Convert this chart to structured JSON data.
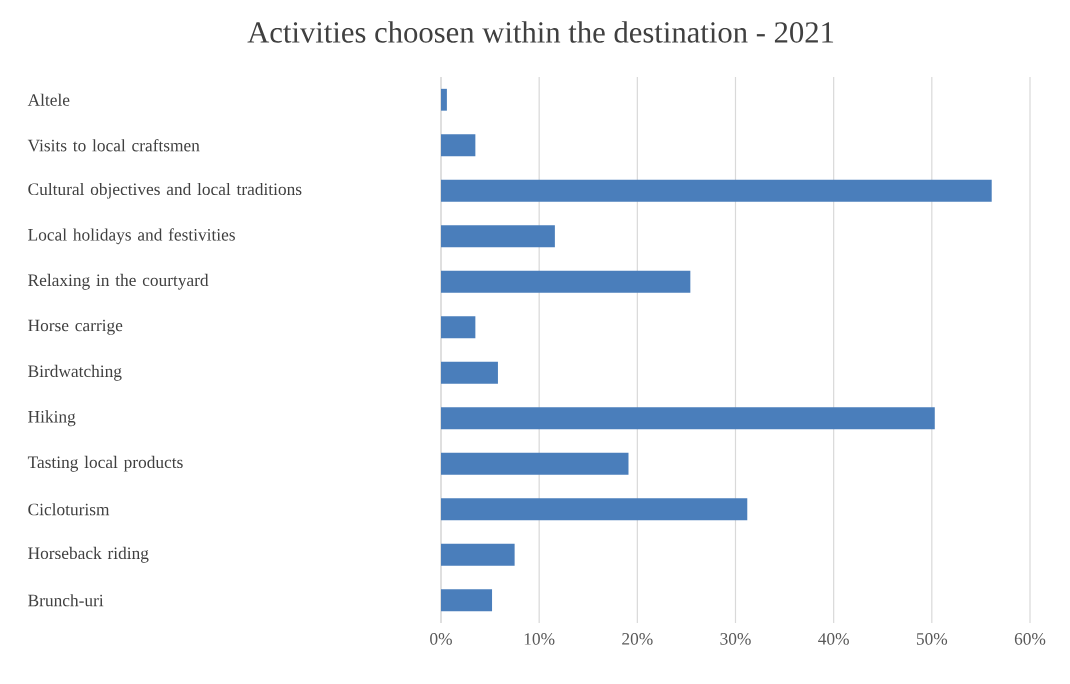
{
  "chart_data": {
    "type": "bar",
    "orientation": "horizontal",
    "title": "Activities choosen within the destination - 2021",
    "categories": [
      "Altele",
      "Visits to local craftsmen",
      "Cultural objectives and local traditions",
      "Local holidays and festivities",
      "Relaxing in the courtyard",
      "Horse carrige",
      "Birdwatching",
      "Hiking",
      "Tasting local products",
      "Cicloturism",
      "Horseback riding",
      "Brunch-uri"
    ],
    "values": [
      0.6,
      3.5,
      56.1,
      11.6,
      25.4,
      3.5,
      5.8,
      50.3,
      19.1,
      31.2,
      7.5,
      5.2
    ],
    "color": "#4a7ebb",
    "xlim": [
      0,
      60
    ],
    "xticks": [
      {
        "value": 0,
        "label": "0%"
      },
      {
        "value": 10,
        "label": "10%"
      },
      {
        "value": 20,
        "label": "20%"
      },
      {
        "value": 30,
        "label": "30%"
      },
      {
        "value": 40,
        "label": "40%"
      },
      {
        "value": 50,
        "label": "50%"
      },
      {
        "value": 60,
        "label": "60%"
      }
    ],
    "grid": "x"
  }
}
